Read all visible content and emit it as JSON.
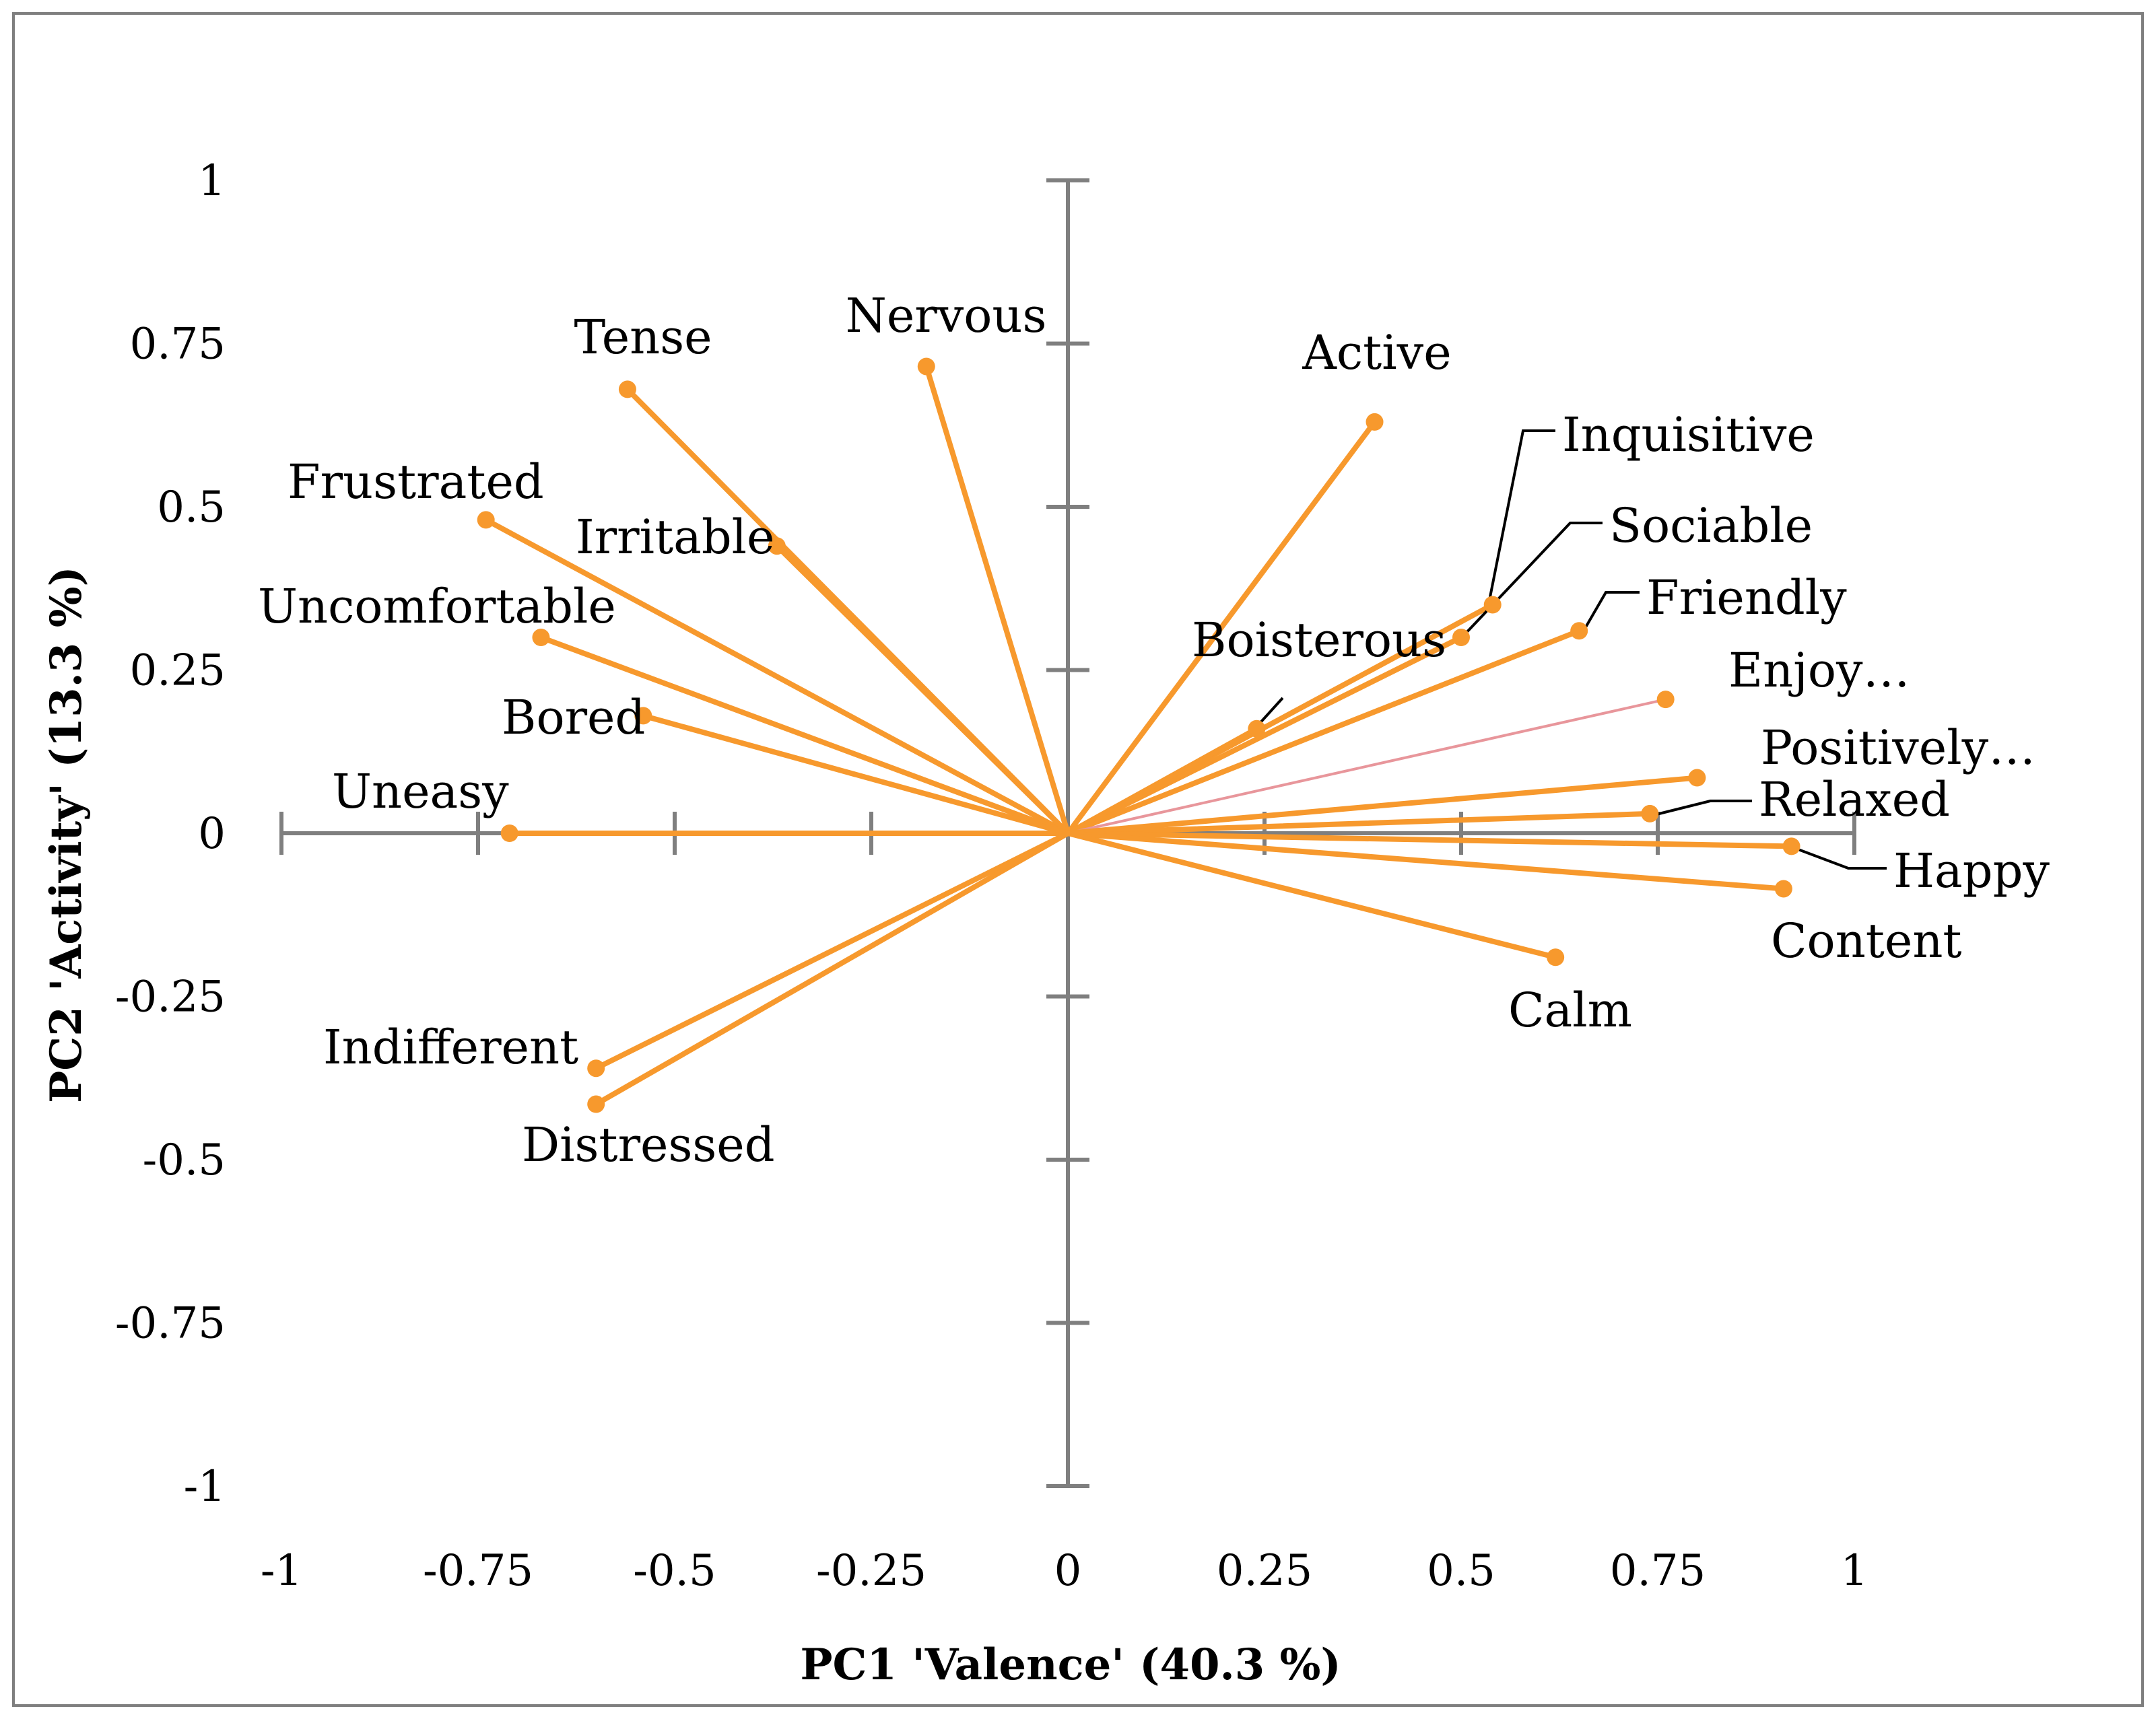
{
  "chart_data": {
    "type": "scatter",
    "subtype": "loading-vector-plot",
    "title": "",
    "xlabel": "PC1 'Valence' (40.3 %)",
    "ylabel": "PC2 'Activity' (13.3 %)",
    "xlim": [
      -1,
      1
    ],
    "ylim": [
      -1,
      1
    ],
    "x_ticks": [
      "-1",
      "-0.75",
      "-0.5",
      "-0.25",
      "0",
      "0.25",
      "0.5",
      "0.75",
      "1"
    ],
    "y_ticks": [
      "1",
      "0.75",
      "0.5",
      "0.25",
      "0",
      "-0.25",
      "-0.5",
      "-0.75",
      "-1"
    ],
    "x_tick_values": [
      -1,
      -0.75,
      -0.5,
      -0.25,
      0,
      0.25,
      0.5,
      0.75,
      1
    ],
    "y_tick_values": [
      1,
      0.75,
      0.5,
      0.25,
      0,
      -0.25,
      -0.5,
      -0.75,
      -1
    ],
    "colors": {
      "vector": "#f7992d",
      "highlight": "#e8969b",
      "axis": "#7f7f7f",
      "frame": "#7f7f7f"
    },
    "points": [
      {
        "label": "Tense",
        "x": -0.56,
        "y": 0.68
      },
      {
        "label": "Nervous",
        "x": -0.18,
        "y": 0.715
      },
      {
        "label": "Active",
        "x": 0.39,
        "y": 0.63
      },
      {
        "label": "Inquisitive",
        "x": 0.54,
        "y": 0.35
      },
      {
        "label": "Sociable",
        "x": 0.5,
        "y": 0.3
      },
      {
        "label": "Friendly",
        "x": 0.65,
        "y": 0.31
      },
      {
        "label": "Boisterous",
        "x": 0.24,
        "y": 0.16
      },
      {
        "label": "Enjoy…",
        "x": 0.76,
        "y": 0.205,
        "highlight": true
      },
      {
        "label": "Positively…",
        "x": 0.8,
        "y": 0.085
      },
      {
        "label": "Relaxed",
        "x": 0.74,
        "y": 0.03
      },
      {
        "label": "Happy",
        "x": 0.92,
        "y": -0.02
      },
      {
        "label": "Content",
        "x": 0.91,
        "y": -0.085
      },
      {
        "label": "Calm",
        "x": 0.62,
        "y": -0.19
      },
      {
        "label": "Frustrated",
        "x": -0.74,
        "y": 0.48
      },
      {
        "label": "Irritable",
        "x": -0.37,
        "y": 0.44
      },
      {
        "label": "Uncomfortable",
        "x": -0.67,
        "y": 0.3
      },
      {
        "label": "Bored",
        "x": -0.54,
        "y": 0.18
      },
      {
        "label": "Uneasy",
        "x": -0.71,
        "y": 0.0
      },
      {
        "label": "Indifferent",
        "x": -0.6,
        "y": -0.36
      },
      {
        "label": "Distressed",
        "x": -0.6,
        "y": -0.415
      }
    ]
  }
}
